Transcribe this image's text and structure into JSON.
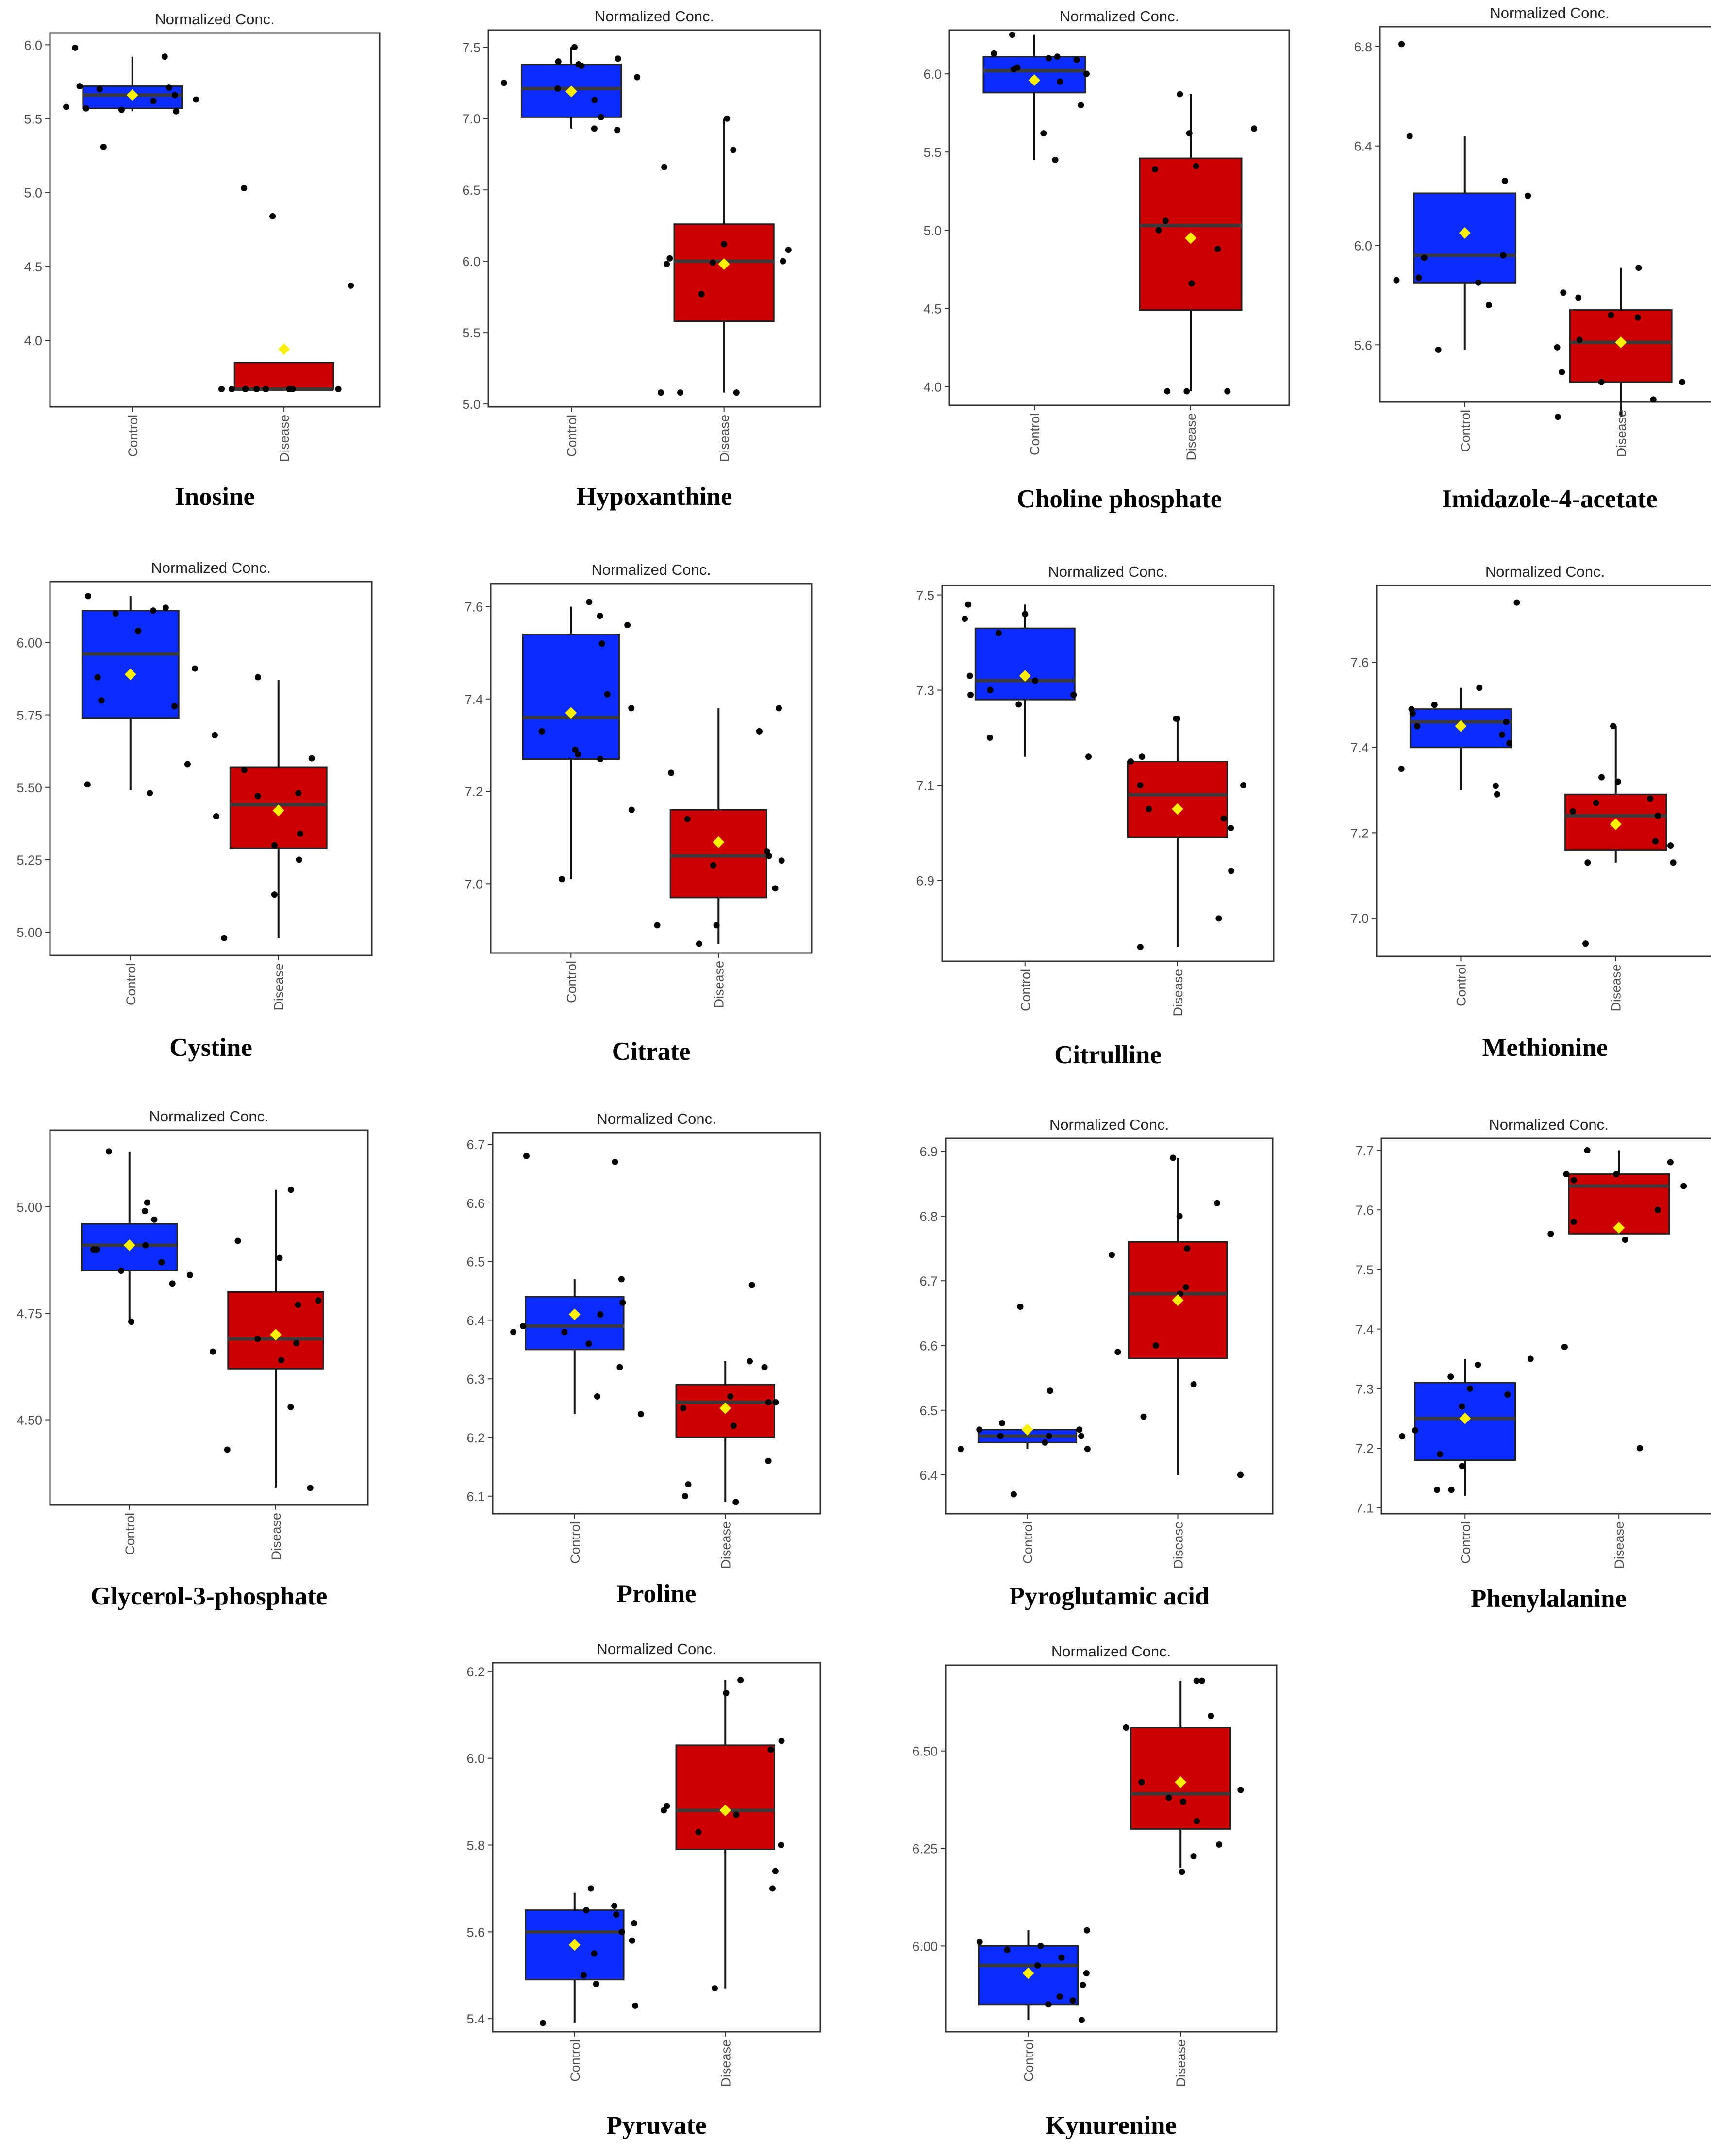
{
  "colors": {
    "control": "#0b2bff",
    "disease": "#cc0000",
    "mean": "#ffef00",
    "median": "#3a3a3a",
    "point": "#000000",
    "frame": "#333333"
  },
  "chart_data": [
    {
      "type": "box",
      "title": "Normalized Conc.",
      "caption": "Inosine",
      "categories": [
        "Control",
        "Disease"
      ],
      "ylim": [
        3.55,
        6.08
      ],
      "yticks": [
        "6.0",
        "5.5",
        "5.0",
        "4.5",
        "4.0"
      ],
      "boxes": [
        {
          "name": "Control",
          "q1": 5.57,
          "median": 5.66,
          "q3": 5.72,
          "min": 5.55,
          "max": 5.92,
          "mean": 5.66,
          "points": [
            5.92,
            5.98,
            5.56,
            5.55,
            5.57,
            5.66,
            5.72,
            5.63,
            5.31,
            5.71,
            5.58,
            5.7,
            5.62
          ]
        },
        {
          "name": "Disease",
          "q1": 3.67,
          "median": 3.67,
          "q3": 3.85,
          "min": 3.67,
          "max": 3.85,
          "mean": 3.94,
          "points": [
            3.67,
            3.67,
            3.67,
            3.67,
            3.67,
            3.67,
            3.67,
            5.03,
            4.84,
            4.37,
            3.67
          ]
        }
      ]
    },
    {
      "type": "box",
      "title": "Normalized Conc.",
      "caption": "Hypoxanthine",
      "categories": [
        "Control",
        "Disease"
      ],
      "ylim": [
        4.98,
        7.62
      ],
      "yticks": [
        "7.5",
        "7.0",
        "6.5",
        "6.0",
        "5.5",
        "5.0"
      ],
      "boxes": [
        {
          "name": "Control",
          "q1": 7.01,
          "median": 7.21,
          "q3": 7.38,
          "min": 6.93,
          "max": 7.5,
          "mean": 7.19,
          "points": [
            7.5,
            7.37,
            7.42,
            7.25,
            7.13,
            6.93,
            6.92,
            7.38,
            7.21,
            7.01,
            7.29,
            7.4
          ]
        },
        {
          "name": "Disease",
          "q1": 5.58,
          "median": 6.0,
          "q3": 6.26,
          "min": 5.08,
          "max": 7.0,
          "mean": 5.98,
          "points": [
            7.0,
            6.78,
            6.66,
            6.12,
            6.08,
            5.99,
            6.0,
            5.98,
            5.77,
            5.08,
            5.08,
            5.08,
            6.02
          ]
        }
      ]
    },
    {
      "type": "box",
      "title": "Normalized Conc.",
      "caption": "Choline phosphate",
      "categories": [
        "Control",
        "Disease"
      ],
      "ylim": [
        3.88,
        6.28
      ],
      "yticks": [
        "6.0",
        "5.5",
        "5.0",
        "4.5",
        "4.0"
      ],
      "boxes": [
        {
          "name": "Control",
          "q1": 5.88,
          "median": 6.02,
          "q3": 6.11,
          "min": 5.45,
          "max": 6.25,
          "mean": 5.96,
          "points": [
            6.25,
            6.11,
            6.13,
            6.03,
            5.95,
            5.8,
            5.62,
            5.45,
            6.04,
            6.09,
            6.0,
            6.1
          ]
        },
        {
          "name": "Disease",
          "q1": 4.49,
          "median": 5.03,
          "q3": 5.46,
          "min": 3.97,
          "max": 5.87,
          "mean": 4.95,
          "points": [
            5.87,
            5.65,
            5.62,
            5.39,
            5.41,
            5.06,
            4.88,
            4.66,
            3.97,
            3.97,
            3.97,
            5.0
          ]
        }
      ]
    },
    {
      "type": "box",
      "title": "Normalized Conc.",
      "caption": "Imidazole-4-acetate",
      "categories": [
        "Control",
        "Disease"
      ],
      "ylim": [
        5.37,
        6.88
      ],
      "yticks": [
        "6.8",
        "6.4",
        "6.0",
        "5.6"
      ],
      "boxes": [
        {
          "name": "Control",
          "q1": 5.85,
          "median": 5.96,
          "q3": 6.21,
          "min": 5.58,
          "max": 6.44,
          "mean": 6.05,
          "points": [
            6.81,
            6.44,
            6.26,
            6.2,
            5.96,
            5.95,
            5.87,
            5.85,
            5.76,
            5.58,
            5.86
          ]
        },
        {
          "name": "Disease",
          "q1": 5.45,
          "median": 5.61,
          "q3": 5.74,
          "min": 5.31,
          "max": 5.91,
          "mean": 5.61,
          "points": [
            5.91,
            5.81,
            5.79,
            5.72,
            5.71,
            5.62,
            5.49,
            5.45,
            5.38,
            5.45,
            5.31,
            5.59
          ]
        }
      ]
    },
    {
      "type": "box",
      "title": "Normalized Conc.",
      "caption": "Cystine",
      "categories": [
        "Control",
        "Disease"
      ],
      "ylim": [
        4.92,
        6.21
      ],
      "yticks": [
        "6.00",
        "5.75",
        "5.50",
        "5.25",
        "5.00"
      ],
      "boxes": [
        {
          "name": "Control",
          "q1": 5.74,
          "median": 5.96,
          "q3": 6.11,
          "min": 5.49,
          "max": 6.16,
          "mean": 5.89,
          "points": [
            6.16,
            6.12,
            6.1,
            6.04,
            5.91,
            5.88,
            5.8,
            5.78,
            5.58,
            5.51,
            5.48,
            6.11
          ]
        },
        {
          "name": "Disease",
          "q1": 5.29,
          "median": 5.44,
          "q3": 5.57,
          "min": 4.98,
          "max": 5.87,
          "mean": 5.42,
          "points": [
            5.88,
            5.68,
            5.6,
            5.56,
            5.48,
            5.47,
            5.4,
            5.34,
            5.3,
            5.25,
            5.13,
            4.98
          ]
        }
      ]
    },
    {
      "type": "box",
      "title": "Normalized Conc.",
      "caption": "Citrate",
      "categories": [
        "Control",
        "Disease"
      ],
      "ylim": [
        6.85,
        7.65
      ],
      "yticks": [
        "7.6",
        "7.4",
        "7.2",
        "7.0"
      ],
      "boxes": [
        {
          "name": "Control",
          "q1": 7.27,
          "median": 7.36,
          "q3": 7.54,
          "min": 7.01,
          "max": 7.6,
          "mean": 7.37,
          "points": [
            7.61,
            7.58,
            7.56,
            7.52,
            7.41,
            7.38,
            7.33,
            7.28,
            7.27,
            7.16,
            7.01,
            7.29
          ]
        },
        {
          "name": "Disease",
          "q1": 6.97,
          "median": 7.06,
          "q3": 7.16,
          "min": 6.87,
          "max": 7.38,
          "mean": 7.09,
          "points": [
            7.38,
            7.33,
            7.24,
            7.14,
            7.07,
            7.05,
            6.99,
            6.91,
            6.87,
            6.91,
            7.06,
            7.04
          ]
        }
      ]
    },
    {
      "type": "box",
      "title": "Normalized Conc.",
      "caption": "Citrulline",
      "categories": [
        "Control",
        "Disease"
      ],
      "ylim": [
        6.73,
        7.52
      ],
      "yticks": [
        "7.5",
        "7.3",
        "7.1",
        "6.9"
      ],
      "boxes": [
        {
          "name": "Control",
          "q1": 7.28,
          "median": 7.32,
          "q3": 7.43,
          "min": 7.16,
          "max": 7.48,
          "mean": 7.33,
          "points": [
            7.48,
            7.46,
            7.45,
            7.42,
            7.33,
            7.3,
            7.29,
            7.29,
            7.27,
            7.2,
            7.16,
            7.32
          ]
        },
        {
          "name": "Disease",
          "q1": 6.99,
          "median": 7.08,
          "q3": 7.15,
          "min": 6.76,
          "max": 7.24,
          "mean": 7.05,
          "points": [
            7.24,
            7.24,
            7.16,
            7.15,
            7.1,
            7.1,
            7.05,
            7.03,
            7.01,
            6.92,
            6.82,
            6.76
          ]
        }
      ]
    },
    {
      "type": "box",
      "title": "Normalized Conc.",
      "caption": "Methionine",
      "categories": [
        "Control",
        "Disease"
      ],
      "ylim": [
        6.91,
        7.78
      ],
      "yticks": [
        "7.6",
        "7.4",
        "7.2",
        "7.0"
      ],
      "boxes": [
        {
          "name": "Control",
          "q1": 7.4,
          "median": 7.46,
          "q3": 7.49,
          "min": 7.3,
          "max": 7.54,
          "mean": 7.45,
          "points": [
            7.74,
            7.54,
            7.5,
            7.48,
            7.46,
            7.45,
            7.43,
            7.41,
            7.35,
            7.31,
            7.29,
            7.49
          ]
        },
        {
          "name": "Disease",
          "q1": 7.16,
          "median": 7.24,
          "q3": 7.29,
          "min": 7.13,
          "max": 7.45,
          "mean": 7.22,
          "points": [
            7.45,
            7.33,
            7.32,
            7.28,
            7.27,
            7.24,
            7.18,
            7.17,
            7.13,
            7.13,
            6.94,
            7.25
          ]
        }
      ]
    },
    {
      "type": "box",
      "title": "Normalized Conc.",
      "caption": "Glycerol-3-phosphate",
      "categories": [
        "Control",
        "Disease"
      ],
      "ylim": [
        4.3,
        5.18
      ],
      "yticks": [
        "5.00",
        "4.75",
        "4.50"
      ],
      "boxes": [
        {
          "name": "Control",
          "q1": 4.85,
          "median": 4.91,
          "q3": 4.96,
          "min": 4.73,
          "max": 5.13,
          "mean": 4.91,
          "points": [
            5.13,
            5.01,
            4.99,
            4.97,
            4.91,
            4.9,
            4.87,
            4.85,
            4.84,
            4.82,
            4.73,
            4.9
          ]
        },
        {
          "name": "Disease",
          "q1": 4.62,
          "median": 4.69,
          "q3": 4.8,
          "min": 4.34,
          "max": 5.04,
          "mean": 4.7,
          "points": [
            5.04,
            4.92,
            4.88,
            4.78,
            4.77,
            4.69,
            4.68,
            4.66,
            4.64,
            4.53,
            4.43,
            4.34
          ]
        }
      ]
    },
    {
      "type": "box",
      "title": "Normalized Conc.",
      "caption": "Proline",
      "categories": [
        "Control",
        "Disease"
      ],
      "ylim": [
        6.07,
        6.72
      ],
      "yticks": [
        "6.7",
        "6.6",
        "6.5",
        "6.4",
        "6.3",
        "6.2",
        "6.1"
      ],
      "boxes": [
        {
          "name": "Control",
          "q1": 6.35,
          "median": 6.39,
          "q3": 6.44,
          "min": 6.24,
          "max": 6.47,
          "mean": 6.41,
          "points": [
            6.68,
            6.67,
            6.47,
            6.43,
            6.41,
            6.39,
            6.38,
            6.38,
            6.36,
            6.32,
            6.27,
            6.24
          ]
        },
        {
          "name": "Disease",
          "q1": 6.2,
          "median": 6.26,
          "q3": 6.29,
          "min": 6.09,
          "max": 6.33,
          "mean": 6.25,
          "points": [
            6.46,
            6.33,
            6.32,
            6.27,
            6.26,
            6.26,
            6.25,
            6.22,
            6.16,
            6.12,
            6.1,
            6.09
          ]
        }
      ]
    },
    {
      "type": "box",
      "title": "Normalized Conc.",
      "caption": "Pyroglutamic acid",
      "categories": [
        "Control",
        "Disease"
      ],
      "ylim": [
        6.34,
        6.92
      ],
      "yticks": [
        "6.9",
        "6.8",
        "6.7",
        "6.6",
        "6.5",
        "6.4"
      ],
      "boxes": [
        {
          "name": "Control",
          "q1": 6.45,
          "median": 6.46,
          "q3": 6.47,
          "min": 6.44,
          "max": 6.47,
          "mean": 6.47,
          "points": [
            6.66,
            6.53,
            6.48,
            6.47,
            6.47,
            6.46,
            6.46,
            6.45,
            6.44,
            6.44,
            6.37,
            6.46
          ]
        },
        {
          "name": "Disease",
          "q1": 6.58,
          "median": 6.68,
          "q3": 6.76,
          "min": 6.4,
          "max": 6.89,
          "mean": 6.67,
          "points": [
            6.89,
            6.82,
            6.8,
            6.75,
            6.74,
            6.69,
            6.68,
            6.6,
            6.59,
            6.54,
            6.49,
            6.4
          ]
        }
      ]
    },
    {
      "type": "box",
      "title": "Normalized Conc.",
      "caption": "Phenylalanine",
      "categories": [
        "Control",
        "Disease"
      ],
      "ylim": [
        7.09,
        7.72
      ],
      "yticks": [
        "7.7",
        "7.6",
        "7.5",
        "7.4",
        "7.3",
        "7.2",
        "7.1"
      ],
      "boxes": [
        {
          "name": "Control",
          "q1": 7.18,
          "median": 7.25,
          "q3": 7.31,
          "min": 7.12,
          "max": 7.35,
          "mean": 7.25,
          "points": [
            7.35,
            7.34,
            7.32,
            7.3,
            7.29,
            7.27,
            7.23,
            7.22,
            7.19,
            7.17,
            7.13,
            7.13
          ]
        },
        {
          "name": "Disease",
          "q1": 7.56,
          "median": 7.64,
          "q3": 7.66,
          "min": 7.56,
          "max": 7.7,
          "mean": 7.57,
          "points": [
            7.7,
            7.68,
            7.66,
            7.65,
            7.64,
            7.58,
            7.56,
            7.55,
            7.37,
            7.2,
            7.66,
            7.6
          ]
        }
      ]
    },
    {
      "type": "box",
      "title": "Normalized Conc.",
      "caption": "Pyruvate",
      "categories": [
        "Control",
        "Disease"
      ],
      "ylim": [
        5.37,
        6.22
      ],
      "yticks": [
        "6.2",
        "6.0",
        "5.8",
        "5.6",
        "5.4"
      ],
      "boxes": [
        {
          "name": "Control",
          "q1": 5.49,
          "median": 5.6,
          "q3": 5.65,
          "min": 5.39,
          "max": 5.69,
          "mean": 5.57,
          "points": [
            5.7,
            5.66,
            5.65,
            5.64,
            5.62,
            5.6,
            5.58,
            5.55,
            5.5,
            5.48,
            5.43,
            5.39
          ]
        },
        {
          "name": "Disease",
          "q1": 5.79,
          "median": 5.88,
          "q3": 6.03,
          "min": 5.47,
          "max": 6.18,
          "mean": 5.88,
          "points": [
            6.18,
            6.15,
            6.04,
            6.02,
            5.89,
            5.87,
            5.83,
            5.8,
            5.74,
            5.7,
            5.47,
            5.88
          ]
        }
      ]
    },
    {
      "type": "box",
      "title": "Normalized Conc.",
      "caption": "Kynurenine",
      "categories": [
        "Control",
        "Disease"
      ],
      "ylim": [
        5.78,
        6.72
      ],
      "yticks": [
        "6.50",
        "6.25",
        "6.00"
      ],
      "boxes": [
        {
          "name": "Control",
          "q1": 5.85,
          "median": 5.95,
          "q3": 6.0,
          "min": 5.81,
          "max": 6.04,
          "mean": 5.93,
          "points": [
            6.04,
            6.01,
            6.0,
            5.99,
            5.97,
            5.95,
            5.93,
            5.9,
            5.87,
            5.86,
            5.85,
            5.81
          ]
        },
        {
          "name": "Disease",
          "q1": 6.3,
          "median": 6.39,
          "q3": 6.56,
          "min": 6.2,
          "max": 6.68,
          "mean": 6.42,
          "points": [
            6.68,
            6.68,
            6.59,
            6.56,
            6.42,
            6.4,
            6.38,
            6.37,
            6.32,
            6.26,
            6.23,
            6.19
          ]
        }
      ]
    }
  ]
}
